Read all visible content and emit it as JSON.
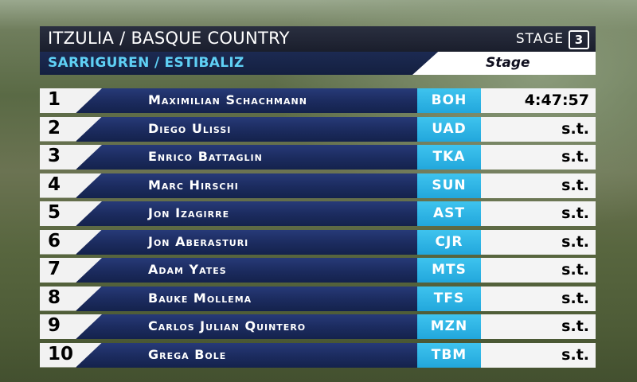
{
  "header": {
    "race_title": "ITZULIA / BASQUE COUNTRY",
    "stage_label": "STAGE",
    "stage_number": "3",
    "route": "SARRIGUREN / ESTIBALIZ",
    "classification": "Stage"
  },
  "results": [
    {
      "rank": "1",
      "name": "Maximilian Schachmann",
      "team": "BOH",
      "time": "4:47:57"
    },
    {
      "rank": "2",
      "name": "Diego Ulissi",
      "team": "UAD",
      "time": "s.t."
    },
    {
      "rank": "3",
      "name": "Enrico Battaglin",
      "team": "TKA",
      "time": "s.t."
    },
    {
      "rank": "4",
      "name": "Marc Hirschi",
      "team": "SUN",
      "time": "s.t."
    },
    {
      "rank": "5",
      "name": "Jon Izagirre",
      "team": "AST",
      "time": "s.t."
    },
    {
      "rank": "6",
      "name": "Jon Aberasturi",
      "team": "CJR",
      "time": "s.t."
    },
    {
      "rank": "7",
      "name": "Adam Yates",
      "team": "MTS",
      "time": "s.t."
    },
    {
      "rank": "8",
      "name": "Bauke Mollema",
      "team": "TFS",
      "time": "s.t."
    },
    {
      "rank": "9",
      "name": "Carlos Julian Quintero",
      "team": "MZN",
      "time": "s.t."
    },
    {
      "rank": "10",
      "name": "Grega Bole",
      "team": "TBM",
      "time": "s.t."
    }
  ],
  "colors": {
    "header_dark": "#1a1e2c",
    "route_text": "#5fd0f5",
    "name_bar": "#1c2c60",
    "team_box": "#22a7dc",
    "time_box": "#f4f4f4"
  }
}
